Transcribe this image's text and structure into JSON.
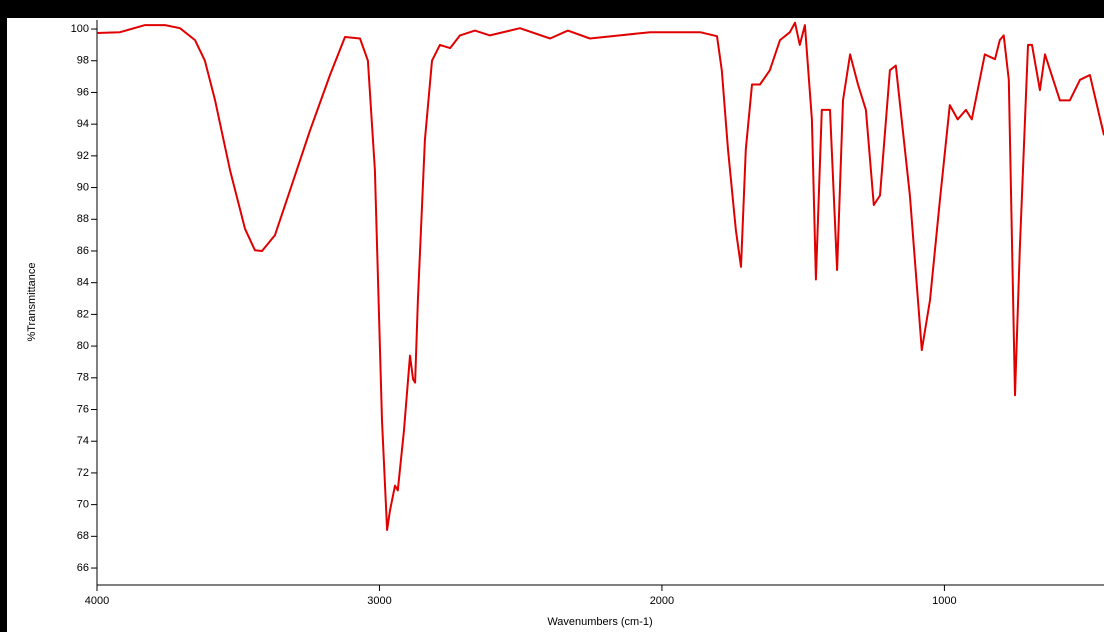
{
  "chart_data": {
    "type": "line",
    "x_label": "Wavenumbers (cm-1)",
    "y_label": "%Transmittance",
    "x": [
      4000,
      3919,
      3830,
      3759,
      3706,
      3653,
      3618,
      3582,
      3529,
      3476,
      3441,
      3416,
      3370,
      3317,
      3246,
      3175,
      3122,
      3069,
      3041,
      3016,
      2991,
      2973,
      2963,
      2945,
      2935,
      2913,
      2892,
      2881,
      2874,
      2864,
      2839,
      2814,
      2786,
      2750,
      2715,
      2662,
      2609,
      2503,
      2396,
      2333,
      2255,
      2149,
      2042,
      1865,
      1805,
      1788,
      1766,
      1738,
      1720,
      1703,
      1681,
      1653,
      1618,
      1582,
      1547,
      1529,
      1512,
      1494,
      1469,
      1455,
      1434,
      1405,
      1380,
      1359,
      1334,
      1306,
      1278,
      1250,
      1228,
      1193,
      1172,
      1122,
      1080,
      1051,
      1016,
      981,
      953,
      924,
      903,
      857,
      821,
      804,
      790,
      772,
      750,
      733,
      704,
      690,
      662,
      644,
      591,
      556,
      520,
      485,
      435
    ],
    "series": [
      {
        "color": "#e00000",
        "values": [
          99.75,
          99.8,
          100.25,
          100.25,
          100.05,
          99.3,
          98.0,
          95.5,
          91.1,
          87.4,
          86.05,
          86.0,
          87.0,
          89.8,
          93.6,
          97.1,
          99.5,
          99.4,
          98.0,
          91.1,
          75.3,
          68.4,
          69.6,
          71.2,
          70.9,
          74.7,
          79.4,
          77.9,
          77.7,
          82.9,
          93.0,
          98.0,
          99.0,
          98.8,
          99.6,
          99.9,
          99.6,
          100.05,
          99.4,
          99.9,
          99.4,
          99.6,
          99.8,
          99.8,
          99.55,
          97.4,
          92.4,
          87.3,
          85.0,
          92.4,
          96.5,
          96.5,
          97.4,
          99.3,
          99.8,
          100.4,
          99.0,
          100.25,
          94.3,
          84.2,
          94.9,
          94.9,
          84.8,
          95.5,
          98.4,
          96.5,
          94.9,
          88.9,
          89.5,
          97.4,
          97.7,
          89.5,
          79.75,
          82.9,
          89.2,
          95.2,
          94.3,
          94.9,
          94.3,
          98.4,
          98.1,
          99.3,
          99.6,
          96.8,
          76.9,
          86.1,
          99.0,
          99.0,
          96.15,
          98.4,
          95.5,
          95.5,
          96.8,
          97.1,
          93.3
        ]
      }
    ],
    "xlim": [
      4000,
      435
    ],
    "xticks": [
      4000,
      3000,
      2000,
      1000
    ],
    "ylim": [
      64.93,
      100.57
    ],
    "yticks": [
      66,
      68,
      70,
      72,
      74,
      76,
      78,
      80,
      82,
      84,
      86,
      88,
      90,
      92,
      94,
      96,
      98,
      100
    ]
  }
}
